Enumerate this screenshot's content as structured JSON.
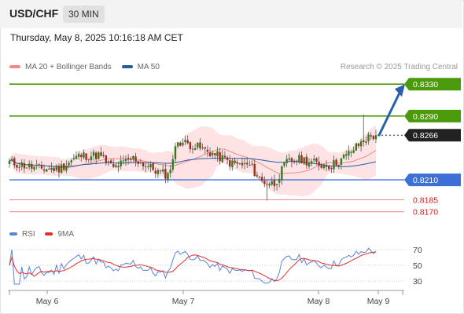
{
  "header": {
    "symbol": "USD/CHF",
    "timeframe": "30 MIN"
  },
  "timestamp": "Thursday, May 8, 2025 10:16:18 AM CET",
  "legend": {
    "bb_label": "MA 20 + Bollinger Bands",
    "ma50_label": "MA 50"
  },
  "credit": "Research © 2025 Trading Central",
  "rsi_legend": {
    "rsi_label": "RSI",
    "ma_label": "9MA"
  },
  "colors": {
    "bollinger_fill": "#fde3e3",
    "ma20": "#f08a8a",
    "ma50": "#2b5aa0",
    "resistance": "#4a9a0a",
    "support_blue": "#3d6fd6",
    "support_red": "#f08a8a",
    "current_price": "#222222",
    "arrow": "#2b5fa8",
    "rsi": "#5b84d6",
    "rsi_ma": "#e03030"
  },
  "chart_data": [
    {
      "type": "candlestick",
      "title": "USD/CHF",
      "ylim": [
        0.815,
        0.8345
      ],
      "x_ticks": [
        "May 6",
        "May 7",
        "May 8",
        "May 9"
      ],
      "levels": [
        {
          "value": 0.833,
          "label": "0.8330",
          "kind": "resistance"
        },
        {
          "value": 0.829,
          "label": "0.8290",
          "kind": "resistance"
        },
        {
          "value": 0.8266,
          "label": "0.8266",
          "kind": "current"
        },
        {
          "value": 0.821,
          "label": "0.8210",
          "kind": "support"
        },
        {
          "value": 0.8185,
          "label": "0.8185",
          "kind": "support_weak"
        },
        {
          "value": 0.817,
          "label": "0.8170",
          "kind": "support_weak"
        }
      ],
      "projection": {
        "from": 0.8266,
        "to": 0.833
      },
      "series": [
        {
          "name": "MA 20 + Bollinger Bands"
        },
        {
          "name": "MA 50"
        }
      ],
      "waypoints": [
        [
          0,
          0.8232
        ],
        [
          12,
          0.8224
        ],
        [
          20,
          0.8224
        ],
        [
          28,
          0.824
        ],
        [
          36,
          0.8241
        ],
        [
          42,
          0.8225
        ],
        [
          50,
          0.8237
        ],
        [
          60,
          0.822
        ],
        [
          64,
          0.8216
        ],
        [
          68,
          0.8259
        ],
        [
          76,
          0.8251
        ],
        [
          84,
          0.824
        ],
        [
          90,
          0.823
        ],
        [
          97,
          0.8228
        ],
        [
          102,
          0.8208
        ],
        [
          107,
          0.8205
        ],
        [
          112,
          0.8232
        ],
        [
          118,
          0.8236
        ],
        [
          124,
          0.823
        ],
        [
          130,
          0.8228
        ],
        [
          136,
          0.824
        ],
        [
          144,
          0.8262
        ],
        [
          148,
          0.8266
        ]
      ]
    },
    {
      "type": "line",
      "title": "RSI",
      "ylim": [
        20,
        80
      ],
      "y_ticks": [
        70,
        50,
        30
      ],
      "series": [
        {
          "name": "RSI"
        },
        {
          "name": "9MA"
        }
      ]
    }
  ]
}
